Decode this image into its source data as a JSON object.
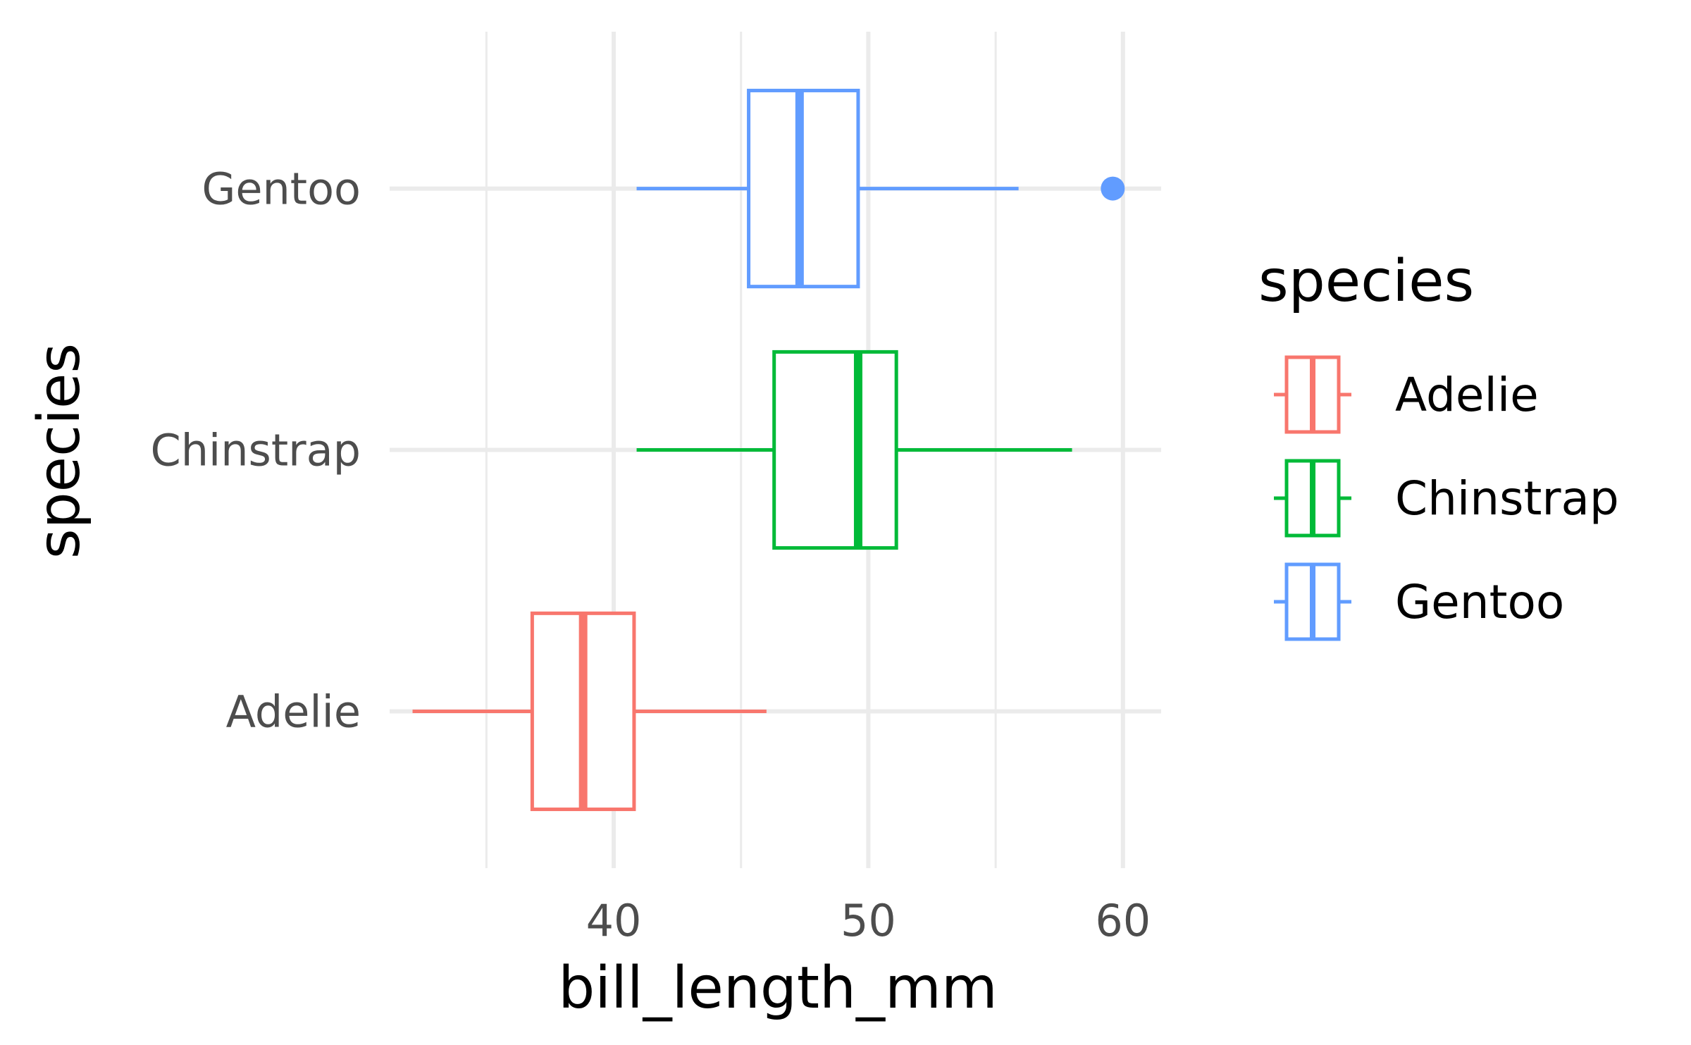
{
  "chart_data": {
    "type": "boxplot",
    "orientation": "horizontal",
    "xlabel": "bill_length_mm",
    "ylabel": "species",
    "xlim": [
      31.2,
      61.5
    ],
    "xticks": [
      40,
      50,
      60
    ],
    "xminor": [
      35,
      45,
      55
    ],
    "categories": [
      "Adelie",
      "Chinstrap",
      "Gentoo"
    ],
    "grid": true,
    "legend": {
      "title": "species",
      "position": "right"
    },
    "series": [
      {
        "name": "Adelie",
        "color": "#F8766D",
        "min": 32.1,
        "q1": 36.8,
        "median": 38.8,
        "q3": 40.8,
        "max": 46.0,
        "outliers": []
      },
      {
        "name": "Chinstrap",
        "color": "#00BA38",
        "min": 40.9,
        "q1": 46.3,
        "median": 49.6,
        "q3": 51.1,
        "max": 58.0,
        "outliers": []
      },
      {
        "name": "Gentoo",
        "color": "#619CFF",
        "min": 40.9,
        "q1": 45.3,
        "median": 47.3,
        "q3": 49.6,
        "max": 55.9,
        "outliers": [
          59.6
        ]
      }
    ]
  }
}
